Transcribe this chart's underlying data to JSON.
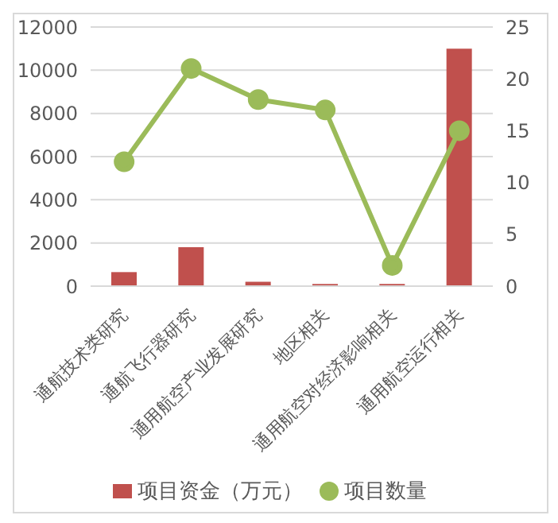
{
  "chart_data": {
    "type": "bar",
    "categories": [
      "通航技术类研究",
      "通航飞行器研究",
      "通用航空产业发展研究",
      "地区相关",
      "通用航空对经济影响相关",
      "通用航空运行相关"
    ],
    "series": [
      {
        "name": "项目资金（万元）",
        "color": "#c0504d",
        "values": [
          650,
          1800,
          200,
          100,
          100,
          11000
        ]
      },
      {
        "name": "项目数量",
        "type": "line",
        "axis": "y2",
        "color": "#9bbb59",
        "values": [
          12,
          21,
          18,
          17,
          2,
          15
        ]
      }
    ],
    "ylim": [
      0,
      12000
    ],
    "yticks": [
      0,
      2000,
      4000,
      6000,
      8000,
      10000,
      12000
    ],
    "y2lim": [
      0,
      25
    ],
    "y2ticks": [
      0,
      5,
      10,
      15,
      20,
      25
    ],
    "grid": "y",
    "legend": "bottom",
    "marker": "circle"
  }
}
